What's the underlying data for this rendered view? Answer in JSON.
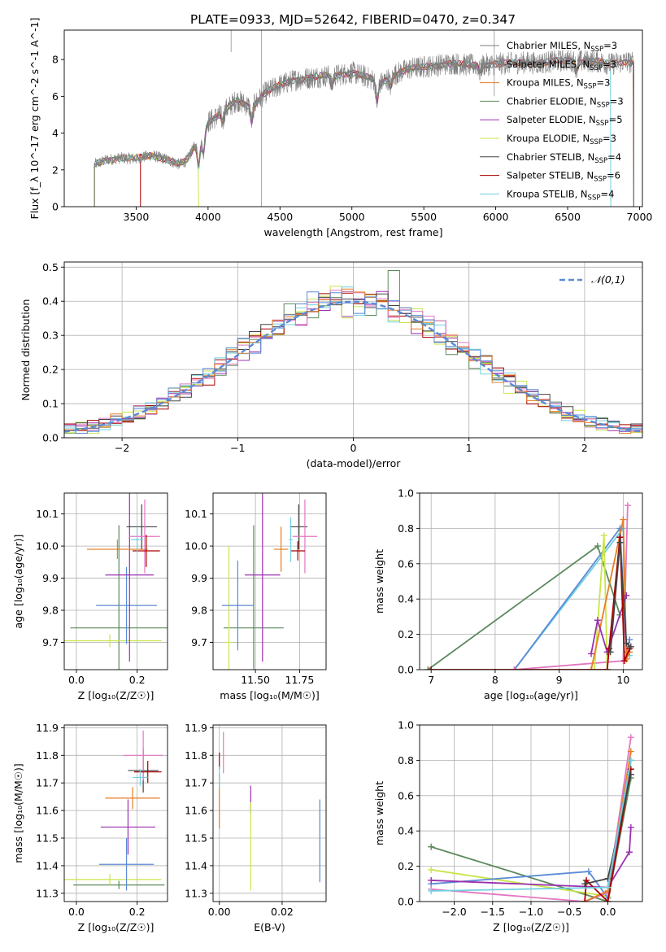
{
  "figure": {
    "title": "PLATE=0933, MJD=52642, FIBERID=0470, z=0.347"
  },
  "colors": {
    "Chabrier MILES": "#7f7f7f",
    "Salpeter MILES": "#7f7f7f",
    "Kroupa MILES": "#e67e22",
    "Chabrier ELODIE": "#5c8a5c",
    "Salpeter ELODIE": "#9b30b0",
    "Kroupa ELODIE": "#c8e64a",
    "Chabrier STELIB": "#444444",
    "Salpeter STELIB": "#aa0000",
    "Kroupa STELIB": "#70d0e0",
    "pink": "#e377c2",
    "blue": "#5b8ad6",
    "normal": "#5b8ad6"
  },
  "chart_data": [
    {
      "id": "spectrum",
      "type": "line",
      "xlabel": "wavelength [Angstrom, rest frame]",
      "ylabel": "Flux [f_λ 10^-17 erg cm^-2 s^-1 A^-1]",
      "xlim": [
        3000,
        7020
      ],
      "ylim": [
        0,
        9.6
      ],
      "xticks": [
        3500,
        4000,
        4500,
        5000,
        5500,
        6000,
        6500,
        7000
      ],
      "yticks": [
        0,
        2,
        4,
        6,
        8
      ],
      "grid": false,
      "legend_position": "top-right",
      "legend": [
        {
          "label": "Chabrier MILES, N",
          "sub": "SSP",
          "suffix": "=3"
        },
        {
          "label": "Salpeter MILES, N",
          "sub": "SSP",
          "suffix": "=3"
        },
        {
          "label": "Kroupa MILES, N",
          "sub": "SSP",
          "suffix": "=3"
        },
        {
          "label": "Chabrier ELODIE, N",
          "sub": "SSP",
          "suffix": "=3"
        },
        {
          "label": "Salpeter ELODIE, N",
          "sub": "SSP",
          "suffix": "=5"
        },
        {
          "label": "Kroupa ELODIE, N",
          "sub": "SSP",
          "suffix": "=3"
        },
        {
          "label": "Chabrier STELIB, N",
          "sub": "SSP",
          "suffix": "=4"
        },
        {
          "label": "Salpeter STELIB, N",
          "sub": "SSP",
          "suffix": "=6"
        },
        {
          "label": "Kroupa STELIB, N",
          "sub": "SSP",
          "suffix": "=4"
        }
      ],
      "continuum": [
        [
          3210,
          2.3
        ],
        [
          3300,
          2.55
        ],
        [
          3400,
          2.65
        ],
        [
          3500,
          2.6
        ],
        [
          3600,
          2.8
        ],
        [
          3700,
          2.6
        ],
        [
          3800,
          2.3
        ],
        [
          3850,
          2.5
        ],
        [
          3900,
          3.2
        ],
        [
          3950,
          3.5
        ],
        [
          4000,
          4.6
        ],
        [
          4100,
          5.1
        ],
        [
          4200,
          5.8
        ],
        [
          4300,
          5.4
        ],
        [
          4400,
          6.2
        ],
        [
          4500,
          6.6
        ],
        [
          4600,
          6.9
        ],
        [
          4700,
          7.0
        ],
        [
          4800,
          7.1
        ],
        [
          4900,
          7.15
        ],
        [
          5000,
          7.3
        ],
        [
          5100,
          7.05
        ],
        [
          5200,
          6.7
        ],
        [
          5300,
          7.2
        ],
        [
          5400,
          7.5
        ],
        [
          5500,
          7.6
        ],
        [
          5600,
          7.7
        ],
        [
          5700,
          7.8
        ],
        [
          5800,
          7.7
        ],
        [
          5900,
          7.7
        ],
        [
          6000,
          7.75
        ],
        [
          6100,
          7.8
        ],
        [
          6200,
          7.85
        ],
        [
          6300,
          7.8
        ],
        [
          6400,
          7.9
        ],
        [
          6500,
          7.95
        ],
        [
          6600,
          7.9
        ],
        [
          6700,
          7.9
        ],
        [
          6800,
          7.75
        ],
        [
          6900,
          7.9
        ],
        [
          6960,
          7.8
        ]
      ],
      "model_ranges": [
        {
          "series": "Salpeter STELIB",
          "start": 3530
        },
        {
          "series": "Kroupa ELODIE",
          "end": 3935
        },
        {
          "series": "Chabrier MILES",
          "end": 6765
        },
        {
          "series": "Kroupa STELIB",
          "end": 6800
        }
      ]
    },
    {
      "id": "residuals",
      "type": "line",
      "xlabel": "(data-model)/error",
      "ylabel": "Normed distribution",
      "xlim": [
        -2.5,
        2.5
      ],
      "ylim": [
        0,
        0.515
      ],
      "xticks": [
        -2,
        -1,
        0,
        1,
        2
      ],
      "yticks": [
        0.0,
        0.1,
        0.2,
        0.3,
        0.4,
        0.5
      ],
      "grid": true,
      "legend_position": "top-right",
      "legend": [
        {
          "label": "𝒩(0,1)"
        }
      ],
      "bin_width": 0.1
    },
    {
      "id": "age-vs-Z",
      "type": "scatter",
      "xlabel": "Z [log₁₀(Z/Z☉)]",
      "ylabel": "age [log₁₀(age/yr)]",
      "xlim": [
        -0.04,
        0.3
      ],
      "ylim": [
        9.615,
        10.165
      ],
      "xticks": [
        0.0,
        0.2
      ],
      "yticks": [
        9.7,
        9.8,
        9.9,
        10.0,
        10.1
      ],
      "grid": true,
      "points": [
        {
          "series": "Chabrier ELODIE",
          "x": 0.14,
          "xerr": 0.16,
          "y": 9.745,
          "yerr": 0.32
        },
        {
          "series": "Kroupa ELODIE",
          "x": 0.11,
          "xerr": 0.17,
          "y": 9.705,
          "yerr": 0.02
        },
        {
          "series": "blue",
          "x": 0.165,
          "xerr": 0.1,
          "y": 9.815,
          "yerr": 0.12
        },
        {
          "series": "Salpeter ELODIE",
          "x": 0.175,
          "xerr": 0.08,
          "y": 9.91,
          "yerr": 0.27
        },
        {
          "series": "Kroupa MILES",
          "x": 0.135,
          "xerr": 0.1,
          "y": 9.99,
          "yerr": 0.03
        },
        {
          "series": "Chabrier STELIB",
          "x": 0.215,
          "xerr": 0.05,
          "y": 10.06,
          "yerr": 0.07
        },
        {
          "series": "pink",
          "x": 0.225,
          "xerr": 0.05,
          "y": 10.03,
          "yerr": 0.115
        },
        {
          "series": "Salpeter STELIB",
          "x": 0.23,
          "xerr": 0.045,
          "y": 9.985,
          "yerr": 0.05
        },
        {
          "series": "Kroupa STELIB",
          "x": 0.2,
          "xerr": 0.02,
          "y": 10.02,
          "yerr": 0.04
        }
      ]
    },
    {
      "id": "age-vs-mass",
      "type": "scatter",
      "xlabel": "mass [log₁₀(M/M☉)]",
      "ylabel": "",
      "xlim": [
        11.26,
        11.9
      ],
      "ylim": [
        9.615,
        10.165
      ],
      "xticks": [
        11.5,
        11.75
      ],
      "yticks": [
        9.7,
        9.8,
        9.9,
        10.0,
        10.1
      ],
      "grid": true,
      "points": [
        {
          "series": "Chabrier ELODIE",
          "x": 11.49,
          "xerr": 0.17,
          "y": 9.745,
          "yerr": 0.32
        },
        {
          "series": "Kroupa ELODIE",
          "x": 11.35,
          "xerr": 0.02,
          "y": 9.7,
          "yerr": 0.3
        },
        {
          "series": "blue",
          "x": 11.4,
          "xerr": 0.09,
          "y": 9.815,
          "yerr": 0.14
        },
        {
          "series": "Salpeter ELODIE",
          "x": 11.54,
          "xerr": 0.1,
          "y": 9.91,
          "yerr": 0.27
        },
        {
          "series": "Kroupa MILES",
          "x": 11.645,
          "xerr": 0.04,
          "y": 9.99,
          "yerr": 0.07
        },
        {
          "series": "Chabrier STELIB",
          "x": 11.745,
          "xerr": 0.05,
          "y": 10.06,
          "yerr": 0.07
        },
        {
          "series": "pink",
          "x": 11.78,
          "xerr": 0.07,
          "y": 10.03,
          "yerr": 0.115
        },
        {
          "series": "Salpeter STELIB",
          "x": 11.74,
          "xerr": 0.04,
          "y": 9.985,
          "yerr": 0.03
        },
        {
          "series": "Kroupa STELIB",
          "x": 11.7,
          "xerr": 0.01,
          "y": 10.02,
          "yerr": 0.07
        }
      ]
    },
    {
      "id": "weight-vs-age",
      "type": "line",
      "xlabel": "age [log₁₀(age/yr)]",
      "ylabel": "mass weight",
      "xlim": [
        6.82,
        10.3
      ],
      "ylim": [
        0,
        1.0
      ],
      "xticks": [
        7,
        8,
        9,
        10
      ],
      "yticks": [
        0.0,
        0.2,
        0.4,
        0.6,
        0.8,
        1.0
      ],
      "grid": true,
      "series": [
        {
          "name": "Chabrier ELODIE",
          "x": [
            6.95,
            9.6,
            9.95
          ],
          "y": [
            0.0,
            0.7,
            0.31
          ]
        },
        {
          "name": "Kroupa STELIB",
          "x": [
            8.3,
            10.0,
            10.05,
            10.1
          ],
          "y": [
            0.0,
            0.8,
            0.1,
            0.08
          ]
        },
        {
          "name": "blue",
          "x": [
            8.3,
            9.95,
            10.05,
            10.1
          ],
          "y": [
            0.0,
            0.8,
            0.1,
            0.17
          ]
        },
        {
          "name": "pink",
          "x": [
            8.3,
            10.0,
            10.07
          ],
          "y": [
            0.0,
            0.05,
            0.93
          ]
        },
        {
          "name": "Kroupa ELODIE",
          "x": [
            9.55,
            9.7,
            9.75
          ],
          "y": [
            0.0,
            0.76,
            0.0
          ]
        },
        {
          "name": "Kroupa MILES",
          "x": [
            9.5,
            10.0,
            10.05,
            10.1
          ],
          "y": [
            0.0,
            0.85,
            0.06,
            0.1
          ]
        },
        {
          "name": "Salpeter ELODIE",
          "x": [
            9.5,
            9.6,
            9.75,
            10.05
          ],
          "y": [
            0.09,
            0.28,
            0.1,
            0.42
          ]
        },
        {
          "name": "Salpeter STELIB",
          "x": [
            7.0,
            9.75,
            9.78,
            9.95,
            10.02,
            10.1
          ],
          "y": [
            0.0,
            0.0,
            0.12,
            0.75,
            0.05,
            0.12
          ]
        },
        {
          "name": "Chabrier STELIB",
          "x": [
            9.8,
            9.95,
            10.05,
            10.12
          ],
          "y": [
            0.1,
            0.72,
            0.15,
            0.13
          ]
        }
      ]
    },
    {
      "id": "mass-vs-Z",
      "type": "scatter",
      "xlabel": "Z [log₁₀(Z/Z☉)]",
      "ylabel": "mass [log₁₀(M/M☉)]",
      "xlim": [
        -0.04,
        0.3
      ],
      "ylim": [
        11.27,
        11.91
      ],
      "xticks": [
        0.0,
        0.2
      ],
      "yticks": [
        11.3,
        11.4,
        11.5,
        11.6,
        11.7,
        11.8,
        11.9
      ],
      "grid": true,
      "points": [
        {
          "series": "Chabrier ELODIE",
          "x": 0.14,
          "xerr": 0.15,
          "y": 11.33,
          "yerr": 0.015
        },
        {
          "series": "Kroupa ELODIE",
          "x": 0.11,
          "xerr": 0.17,
          "y": 11.35,
          "yerr": 0.02
        },
        {
          "series": "blue",
          "x": 0.165,
          "xerr": 0.09,
          "y": 11.405,
          "yerr": 0.095
        },
        {
          "series": "Salpeter ELODIE",
          "x": 0.17,
          "xerr": 0.09,
          "y": 11.54,
          "yerr": 0.1
        },
        {
          "series": "Kroupa MILES",
          "x": 0.185,
          "xerr": 0.09,
          "y": 11.645,
          "yerr": 0.04
        },
        {
          "series": "Chabrier STELIB",
          "x": 0.22,
          "xerr": 0.05,
          "y": 11.745,
          "yerr": 0.08
        },
        {
          "series": "pink",
          "x": 0.22,
          "xerr": 0.065,
          "y": 11.8,
          "yerr": 0.09
        },
        {
          "series": "Salpeter STELIB",
          "x": 0.235,
          "xerr": 0.045,
          "y": 11.74,
          "yerr": 0.04
        },
        {
          "series": "Kroupa STELIB",
          "x": 0.21,
          "xerr": 0.025,
          "y": 11.72,
          "yerr": 0.03
        }
      ]
    },
    {
      "id": "mass-vs-EBV",
      "type": "scatter",
      "xlabel": "E(B-V)",
      "ylabel": "",
      "xlim": [
        -0.002,
        0.034
      ],
      "ylim": [
        11.27,
        11.91
      ],
      "xticks": [
        0.0,
        0.02
      ],
      "yticks": [
        11.3,
        11.4,
        11.5,
        11.6,
        11.7,
        11.8,
        11.9
      ],
      "grid": true,
      "points": [
        {
          "series": "Kroupa MILES",
          "x": 0.0,
          "xerr": 0,
          "y": 11.635,
          "yerr": 0.1
        },
        {
          "series": "Salpeter STELIB",
          "x": 0.0,
          "xerr": 0,
          "y": 11.78,
          "yerr": 0.03
        },
        {
          "series": "Kroupa STELIB",
          "x": 0.0,
          "xerr": 0,
          "y": 11.72,
          "yerr": 0.04
        },
        {
          "series": "pink",
          "x": 0.0013,
          "xerr": 0,
          "y": 11.81,
          "yerr": 0.075
        },
        {
          "series": "Salpeter ELODIE",
          "x": 0.01,
          "xerr": 0,
          "y": 11.64,
          "yerr": 0.05
        },
        {
          "series": "Kroupa ELODIE",
          "x": 0.01,
          "xerr": 0,
          "y": 11.47,
          "yerr": 0.16
        },
        {
          "series": "blue",
          "x": 0.032,
          "xerr": 0,
          "y": 11.49,
          "yerr": 0.15
        }
      ]
    },
    {
      "id": "weight-vs-Z",
      "type": "line",
      "xlabel": "Z [log₁₀(Z/Z☉)]",
      "ylabel": "mass weight",
      "xlim": [
        -2.45,
        0.45
      ],
      "ylim": [
        0,
        1.0
      ],
      "xticks": [
        -2.0,
        -1.5,
        -1.0,
        -0.5,
        0.0
      ],
      "yticks": [
        0.0,
        0.2,
        0.4,
        0.6,
        0.8,
        1.0
      ],
      "grid": true,
      "series": [
        {
          "name": "Chabrier ELODIE",
          "x": [
            -2.3,
            0.0,
            0.3
          ],
          "y": [
            0.31,
            0.0,
            0.7
          ]
        },
        {
          "name": "Kroupa ELODIE",
          "x": [
            -2.3,
            0.0,
            0.3
          ],
          "y": [
            0.18,
            0.03,
            0.8
          ]
        },
        {
          "name": "blue",
          "x": [
            -2.3,
            -0.25,
            0.0,
            0.3
          ],
          "y": [
            0.1,
            0.17,
            0.02,
            0.8
          ]
        },
        {
          "name": "Salpeter ELODIE",
          "x": [
            -2.3,
            0.0,
            0.28,
            0.3
          ],
          "y": [
            0.12,
            0.08,
            0.28,
            0.42
          ]
        },
        {
          "name": "pink",
          "x": [
            -2.3,
            -0.3,
            0.0,
            0.3
          ],
          "y": [
            0.07,
            0.0,
            0.05,
            0.93
          ]
        },
        {
          "name": "Kroupa MILES",
          "x": [
            -0.3,
            0.0,
            0.3
          ],
          "y": [
            0.0,
            0.06,
            0.85
          ]
        },
        {
          "name": "Salpeter STELIB",
          "x": [
            -0.3,
            -0.28,
            0.0,
            0.3
          ],
          "y": [
            0.0,
            0.12,
            0.0,
            0.75
          ]
        },
        {
          "name": "Chabrier STELIB",
          "x": [
            -0.3,
            0.0,
            0.3
          ],
          "y": [
            0.1,
            0.13,
            0.72
          ]
        },
        {
          "name": "Kroupa STELIB",
          "x": [
            -2.3,
            0.0,
            0.3
          ],
          "y": [
            0.06,
            0.08,
            0.8
          ]
        }
      ]
    }
  ]
}
